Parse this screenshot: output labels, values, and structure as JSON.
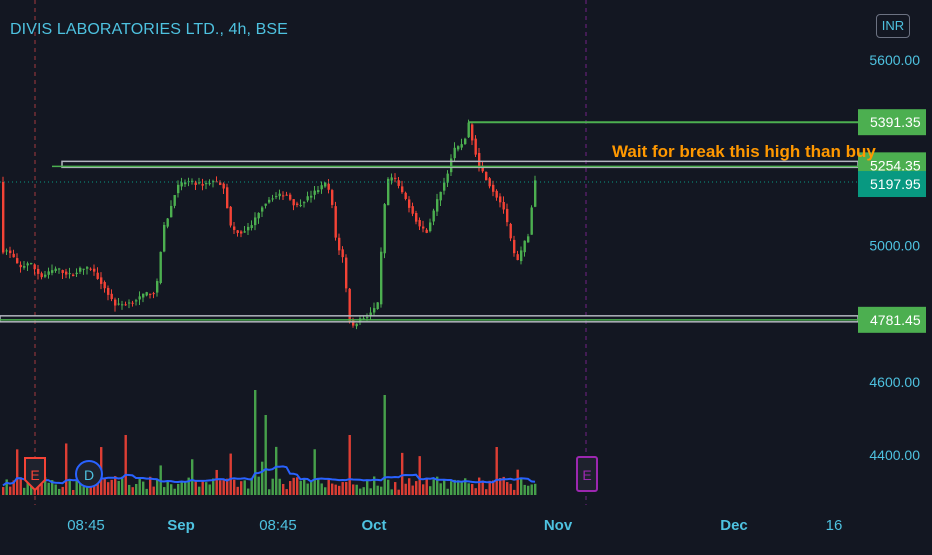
{
  "header": {
    "title": "DIVIS LABORATORIES LTD., 4h, BSE",
    "currency": "INR"
  },
  "annotation": {
    "text": "Wait for break this high than buy"
  },
  "chart_data": {
    "type": "candlestick",
    "y_axis": {
      "ticks": [
        "5600.00",
        "5000.00",
        "4600.00",
        "4400.00"
      ],
      "tick_values": [
        5600,
        5000,
        4600,
        4400
      ],
      "scale": "log"
    },
    "x_axis": {
      "ticks": [
        "08:45",
        "Sep",
        "08:45",
        "Oct",
        "Nov",
        "Dec",
        "16"
      ]
    },
    "price_labels": [
      {
        "text": "5391.35",
        "value": 5391.35,
        "kind": "line",
        "color": "#4caf50"
      },
      {
        "text": "5254.35",
        "value": 5254.35,
        "kind": "line",
        "color": "#4caf50"
      },
      {
        "text": "5197.95",
        "value": 5197.95,
        "kind": "last-price",
        "color": "#089981"
      },
      {
        "text": "4781.45",
        "value": 4781.45,
        "kind": "line",
        "color": "#4caf50"
      }
    ],
    "event_markers": [
      {
        "letter": "E",
        "type": "earnings",
        "color": "#f44336"
      },
      {
        "letter": "D",
        "type": "dividend",
        "color": "#2962ff"
      },
      {
        "letter": "E",
        "type": "earnings-upcoming",
        "color": "#9c27b0"
      }
    ],
    "colors": {
      "up": "#4caf50",
      "down": "#f44336",
      "background": "#131722",
      "volume_ma": "#2962ff",
      "annotation": "#ff9800",
      "axis_text": "#4ec2e0"
    }
  }
}
